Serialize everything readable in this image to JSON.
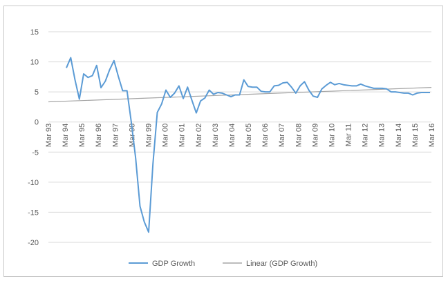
{
  "chart_data": {
    "type": "line",
    "title": "",
    "xlabel": "",
    "ylabel": "",
    "ylim": [
      -20,
      15
    ],
    "yticks": [
      15,
      10,
      5,
      0,
      -5,
      -10,
      -15,
      -20
    ],
    "grid": true,
    "legend_position": "bottom",
    "x_tick_labels": [
      "Mar 93",
      "Mar 94",
      "Mar 95",
      "Mar 96",
      "Mar 97",
      "Mar 98",
      "Mar 99",
      "Mar 00",
      "Mar 01",
      "Mar 02",
      "Mar 03",
      "Mar 04",
      "Mar 05",
      "Mar 06",
      "Mar 07",
      "Mar 08",
      "Mar 09",
      "Mar 10",
      "Mar 11",
      "Mar 12",
      "Mar 13",
      "Mar 14",
      "Mar 15",
      "Mar 16"
    ],
    "x_start": "Mar 93",
    "x_frequency": "quarterly",
    "series": [
      {
        "name": "GDP Growth",
        "color": "#5b9bd5",
        "values": [
          9.0,
          10.7,
          7.0,
          3.8,
          8.0,
          7.4,
          7.7,
          9.4,
          5.7,
          6.8,
          8.7,
          10.2,
          7.6,
          5.2,
          5.2,
          0.0,
          -6.0,
          -14.0,
          -16.6,
          -18.3,
          -7.0,
          1.6,
          3.0,
          5.3,
          4.1,
          4.8,
          6.0,
          3.9,
          5.8,
          3.6,
          1.5,
          3.5,
          4.0,
          5.3,
          4.6,
          4.9,
          4.8,
          4.5,
          4.2,
          4.5,
          4.5,
          7.0,
          5.9,
          5.8,
          5.8,
          5.1,
          5.0,
          5.0,
          6.0,
          6.1,
          6.5,
          6.6,
          5.8,
          4.8,
          6.0,
          6.7,
          5.3,
          4.3,
          4.1,
          5.5,
          6.1,
          6.6,
          6.2,
          6.4,
          6.2,
          6.1,
          6.0,
          6.0,
          6.3,
          6.0,
          5.8,
          5.6,
          5.6,
          5.6,
          5.5,
          5.0,
          5.0,
          4.9,
          4.8,
          4.8,
          4.5,
          4.8,
          4.9,
          4.9,
          4.9
        ]
      },
      {
        "name": "Linear (GDP Growth)",
        "color": "#a5a5a5",
        "values": [
          3.35,
          5.75
        ],
        "trendline": "linear"
      }
    ]
  }
}
